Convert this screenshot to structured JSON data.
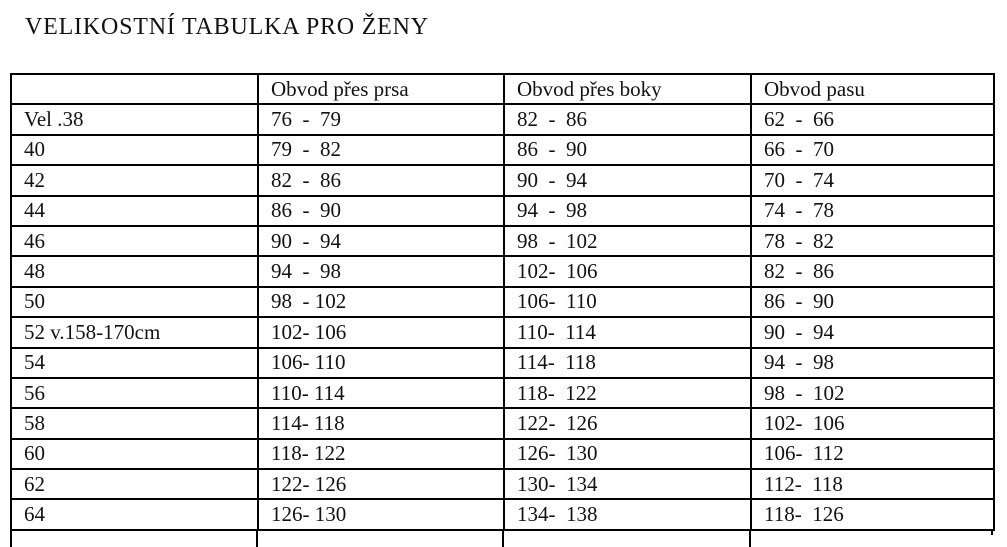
{
  "title": "VELIKOSTNÍ TABULKA PRO ŽENY",
  "table": {
    "columns": [
      "",
      "Obvod přes prsa",
      "Obvod přes boky",
      "Obvod pasu"
    ],
    "rows": [
      [
        "Vel .38",
        "76  -  79",
        "82  -  86",
        "62  -  66"
      ],
      [
        "40",
        "79  -  82",
        "86  -  90",
        "66  -  70"
      ],
      [
        "42",
        "82  -  86",
        "90  -  94",
        "70  -  74"
      ],
      [
        "44",
        "86  -  90",
        "94  -  98",
        "74  -  78"
      ],
      [
        "46",
        "90  -  94",
        "98  -  102",
        "78  -  82"
      ],
      [
        "48",
        "94  -  98",
        "102-  106",
        "82  -  86"
      ],
      [
        "50",
        "98  - 102",
        "106-  110",
        "86  -  90"
      ],
      [
        "52 v.158-170cm",
        "102- 106",
        "110-  114",
        "90  -  94"
      ],
      [
        "54",
        "106- 110",
        "114-  118",
        "94  -  98"
      ],
      [
        "56",
        "110- 114",
        "118-  122",
        "98  -  102"
      ],
      [
        "58",
        "114- 118",
        "122-  126",
        "102-  106"
      ],
      [
        "60",
        "118- 122",
        "126-  130",
        "106-  112"
      ],
      [
        "62",
        "122- 126",
        "130-  134",
        "112-  118"
      ],
      [
        "64",
        "126- 130",
        "134-  138",
        "118-  126"
      ]
    ]
  }
}
